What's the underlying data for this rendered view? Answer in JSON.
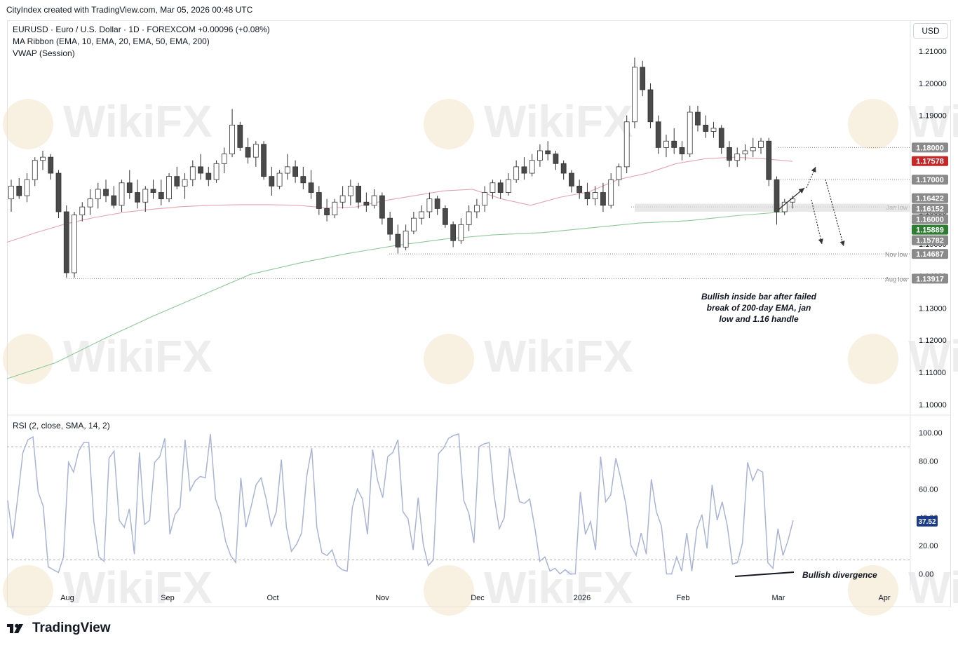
{
  "header": {
    "credit": "CityIndex created with TradingView.com, Mar 05, 2026 00:48 UTC",
    "symbol_line": "EURUSD · Euro / U.S. Dollar · 1D · FOREXCOM",
    "change": "+0.00096 (+0.08%)",
    "indicator1": "MA Ribbon (EMA, 10, EMA, 20, EMA, 50, EMA, 200)",
    "indicator2": "VWAP (Session)",
    "currency_button": "USD"
  },
  "watermark": "WikiFX",
  "footer": {
    "brand": "TradingView"
  },
  "colors": {
    "up_candle": "#ffffff",
    "down_candle": "#4a4a4a",
    "ema50": "#e6a4b0",
    "ema200": "#8fc79a",
    "rsi": "#aab4d8",
    "label_grey": "#8a8a8a",
    "label_red": "#c62828",
    "label_green": "#2e7d32",
    "label_blue": "#1a3a8a"
  },
  "chart_data": [
    {
      "type": "candlestick",
      "title": "EURUSD · Euro / U.S. Dollar · 1D · FOREXCOM",
      "ylim": [
        1.098,
        1.213
      ],
      "y_ticks": [
        "1.21000",
        "1.20000",
        "1.19000",
        "1.18000",
        "1.17000",
        "1.16000",
        "1.15000",
        "1.14000",
        "1.13000",
        "1.12000",
        "1.11000",
        "1.10000"
      ],
      "x_ticks": [
        "Aug",
        "Sep",
        "Oct",
        "Nov",
        "Dec",
        "2026",
        "Feb",
        "Mar",
        "Apr"
      ],
      "price_labels": [
        {
          "value": 1.18,
          "text": "1.18000",
          "style": "grey"
        },
        {
          "value": 1.17578,
          "text": "1.17578",
          "style": "red"
        },
        {
          "value": 1.17,
          "text": "1.17000",
          "style": "grey"
        },
        {
          "value": 1.16422,
          "text": "1.16422",
          "style": "grey"
        },
        {
          "value": 1.16152,
          "text": "1.16152",
          "style": "grey"
        },
        {
          "value": 1.16,
          "text": "1.16000",
          "style": "grey"
        },
        {
          "value": 1.15889,
          "text": "1.15889",
          "style": "green"
        },
        {
          "value": 1.15782,
          "text": "1.15782",
          "style": "grey"
        },
        {
          "value": 1.14687,
          "text": "1.14687",
          "style": "grey"
        },
        {
          "value": 1.13917,
          "text": "1.13917",
          "style": "grey"
        }
      ],
      "level_lines": [
        {
          "value": 1.18,
          "label": ""
        },
        {
          "value": 1.17,
          "label": ""
        },
        {
          "value": 1.1615,
          "label": "Jan low"
        },
        {
          "value": 1.14687,
          "label": "Nov low"
        },
        {
          "value": 1.13917,
          "label": "Aug low"
        }
      ],
      "zone": [
        1.16,
        1.1625
      ],
      "annotation": [
        "Bullish inside bar after failed",
        "break of 200-day EMA, jan",
        "low and 1.16 handle"
      ],
      "series": [
        {
          "name": "EMA 50",
          "values": [
            1.1505,
            1.1535,
            1.1562,
            1.1582,
            1.1598,
            1.1608,
            1.1616,
            1.162,
            1.1622,
            1.1622,
            1.162,
            1.1612,
            1.1615,
            1.1635,
            1.165,
            1.1665,
            1.167,
            1.164,
            1.162,
            1.1645,
            1.1662,
            1.17,
            1.172,
            1.175,
            1.1765,
            1.177,
            1.1765,
            1.1757
          ]
        },
        {
          "name": "EMA 200",
          "values": [
            1.108,
            1.113,
            1.1205,
            1.1275,
            1.134,
            1.1405,
            1.144,
            1.147,
            1.1495,
            1.1515,
            1.1528,
            1.1535,
            1.155,
            1.1565,
            1.1572,
            1.1588,
            1.16
          ]
        }
      ],
      "candles_ohlc": [
        [
          1.164,
          1.17,
          1.16,
          1.168
        ],
        [
          1.168,
          1.1705,
          1.164,
          1.165
        ],
        [
          1.165,
          1.172,
          1.163,
          1.17
        ],
        [
          1.17,
          1.177,
          1.168,
          1.176
        ],
        [
          1.176,
          1.179,
          1.173,
          1.177
        ],
        [
          1.177,
          1.178,
          1.17,
          1.172
        ],
        [
          1.172,
          1.173,
          1.158,
          1.16
        ],
        [
          1.16,
          1.162,
          1.1395,
          1.141
        ],
        [
          1.141,
          1.16,
          1.1395,
          1.159
        ],
        [
          1.159,
          1.163,
          1.157,
          1.1615
        ],
        [
          1.1615,
          1.167,
          1.159,
          1.164
        ],
        [
          1.164,
          1.169,
          1.161,
          1.167
        ],
        [
          1.167,
          1.17,
          1.163,
          1.165
        ],
        [
          1.165,
          1.168,
          1.161,
          1.162
        ],
        [
          1.162,
          1.17,
          1.16,
          1.169
        ],
        [
          1.169,
          1.173,
          1.164,
          1.166
        ],
        [
          1.166,
          1.17,
          1.161,
          1.163
        ],
        [
          1.163,
          1.168,
          1.16,
          1.167
        ],
        [
          1.167,
          1.17,
          1.164,
          1.166
        ],
        [
          1.166,
          1.17,
          1.162,
          1.164
        ],
        [
          1.164,
          1.172,
          1.163,
          1.171
        ],
        [
          1.171,
          1.174,
          1.167,
          1.168
        ],
        [
          1.168,
          1.172,
          1.164,
          1.17
        ],
        [
          1.17,
          1.176,
          1.168,
          1.174
        ],
        [
          1.174,
          1.178,
          1.17,
          1.172
        ],
        [
          1.172,
          1.174,
          1.168,
          1.17
        ],
        [
          1.17,
          1.176,
          1.169,
          1.175
        ],
        [
          1.175,
          1.18,
          1.172,
          1.178
        ],
        [
          1.178,
          1.192,
          1.177,
          1.187
        ],
        [
          1.187,
          1.188,
          1.179,
          1.18
        ],
        [
          1.18,
          1.183,
          1.175,
          1.177
        ],
        [
          1.177,
          1.182,
          1.174,
          1.181
        ],
        [
          1.181,
          1.182,
          1.17,
          1.171
        ],
        [
          1.171,
          1.174,
          1.165,
          1.168
        ],
        [
          1.168,
          1.173,
          1.167,
          1.172
        ],
        [
          1.172,
          1.178,
          1.17,
          1.174
        ],
        [
          1.174,
          1.176,
          1.169,
          1.171
        ],
        [
          1.171,
          1.174,
          1.167,
          1.169
        ],
        [
          1.169,
          1.173,
          1.164,
          1.166
        ],
        [
          1.166,
          1.168,
          1.159,
          1.161
        ],
        [
          1.161,
          1.164,
          1.157,
          1.159
        ],
        [
          1.159,
          1.164,
          1.158,
          1.163
        ],
        [
          1.163,
          1.168,
          1.161,
          1.165
        ],
        [
          1.165,
          1.17,
          1.162,
          1.168
        ],
        [
          1.168,
          1.169,
          1.161,
          1.163
        ],
        [
          1.163,
          1.166,
          1.16,
          1.162
        ],
        [
          1.162,
          1.167,
          1.161,
          1.165
        ],
        [
          1.165,
          1.166,
          1.156,
          1.158
        ],
        [
          1.158,
          1.16,
          1.151,
          1.153
        ],
        [
          1.153,
          1.156,
          1.147,
          1.149
        ],
        [
          1.149,
          1.156,
          1.148,
          1.154
        ],
        [
          1.154,
          1.16,
          1.153,
          1.158
        ],
        [
          1.158,
          1.162,
          1.156,
          1.16
        ],
        [
          1.16,
          1.166,
          1.158,
          1.164
        ],
        [
          1.164,
          1.165,
          1.159,
          1.161
        ],
        [
          1.161,
          1.162,
          1.155,
          1.156
        ],
        [
          1.156,
          1.157,
          1.149,
          1.151
        ],
        [
          1.151,
          1.158,
          1.15,
          1.156
        ],
        [
          1.156,
          1.162,
          1.154,
          1.16
        ],
        [
          1.16,
          1.164,
          1.158,
          1.162
        ],
        [
          1.162,
          1.168,
          1.16,
          1.166
        ],
        [
          1.166,
          1.17,
          1.164,
          1.169
        ],
        [
          1.169,
          1.17,
          1.164,
          1.166
        ],
        [
          1.166,
          1.172,
          1.165,
          1.17
        ],
        [
          1.17,
          1.176,
          1.169,
          1.174
        ],
        [
          1.174,
          1.177,
          1.17,
          1.172
        ],
        [
          1.172,
          1.178,
          1.171,
          1.176
        ],
        [
          1.176,
          1.181,
          1.174,
          1.179
        ],
        [
          1.179,
          1.182,
          1.176,
          1.178
        ],
        [
          1.178,
          1.179,
          1.173,
          1.175
        ],
        [
          1.175,
          1.176,
          1.17,
          1.172
        ],
        [
          1.172,
          1.173,
          1.166,
          1.168
        ],
        [
          1.168,
          1.17,
          1.164,
          1.166
        ],
        [
          1.166,
          1.169,
          1.162,
          1.164
        ],
        [
          1.164,
          1.168,
          1.162,
          1.166
        ],
        [
          1.166,
          1.169,
          1.16,
          1.162
        ],
        [
          1.162,
          1.172,
          1.161,
          1.17
        ],
        [
          1.17,
          1.175,
          1.168,
          1.174
        ],
        [
          1.174,
          1.19,
          1.172,
          1.188
        ],
        [
          1.188,
          1.208,
          1.186,
          1.205
        ],
        [
          1.205,
          1.207,
          1.196,
          1.198
        ],
        [
          1.198,
          1.2,
          1.186,
          1.188
        ],
        [
          1.188,
          1.19,
          1.178,
          1.18
        ],
        [
          1.18,
          1.184,
          1.177,
          1.182
        ],
        [
          1.182,
          1.186,
          1.178,
          1.18
        ],
        [
          1.18,
          1.182,
          1.176,
          1.178
        ],
        [
          1.178,
          1.193,
          1.177,
          1.191
        ],
        [
          1.191,
          1.193,
          1.185,
          1.187
        ],
        [
          1.187,
          1.19,
          1.183,
          1.185
        ],
        [
          1.185,
          1.188,
          1.183,
          1.186
        ],
        [
          1.186,
          1.187,
          1.178,
          1.18
        ],
        [
          1.18,
          1.182,
          1.174,
          1.176
        ],
        [
          1.176,
          1.18,
          1.174,
          1.178
        ],
        [
          1.178,
          1.181,
          1.176,
          1.179
        ],
        [
          1.179,
          1.183,
          1.177,
          1.18
        ],
        [
          1.18,
          1.183,
          1.178,
          1.182
        ],
        [
          1.182,
          1.183,
          1.168,
          1.17
        ],
        [
          1.17,
          1.171,
          1.156,
          1.16
        ],
        [
          1.16,
          1.164,
          1.159,
          1.163
        ],
        [
          1.163,
          1.165,
          1.161,
          1.164
        ]
      ]
    },
    {
      "type": "line",
      "title": "RSI (2, close, SMA, 14, 2)",
      "ylim": [
        -8,
        108
      ],
      "y_ticks": [
        "100.00",
        "80.00",
        "60.00",
        "40.00",
        "20.00",
        "0.00"
      ],
      "current_label": {
        "value": 37.52,
        "text": "37.52"
      },
      "levels": [
        90,
        10
      ],
      "annotation": "Bullish divergence",
      "series": [
        {
          "name": "RSI",
          "values": [
            52,
            25,
            55,
            86,
            95,
            97,
            58,
            48,
            5,
            3,
            1,
            12,
            79,
            72,
            87,
            93,
            93,
            37,
            12,
            9,
            82,
            87,
            38,
            33,
            46,
            14,
            86,
            35,
            38,
            79,
            83,
            96,
            28,
            42,
            47,
            95,
            59,
            66,
            69,
            68,
            99,
            53,
            43,
            23,
            13,
            8,
            68,
            33,
            47,
            63,
            68,
            53,
            34,
            44,
            81,
            33,
            16,
            21,
            29,
            69,
            89,
            33,
            15,
            13,
            17,
            6,
            3,
            2,
            47,
            60,
            53,
            28,
            88,
            66,
            54,
            83,
            86,
            95,
            44,
            39,
            17,
            54,
            21,
            6,
            10,
            85,
            89,
            96,
            98,
            99,
            52,
            43,
            22,
            90,
            92,
            93,
            55,
            32,
            40,
            89,
            69,
            51,
            50,
            53,
            33,
            9,
            12,
            2,
            4,
            0,
            3,
            0,
            0,
            58,
            28,
            37,
            17,
            83,
            51,
            56,
            82,
            67,
            49,
            20,
            13,
            29,
            14,
            67,
            44,
            34,
            0,
            0,
            12,
            2,
            29,
            2,
            32,
            42,
            18,
            63,
            38,
            51,
            34,
            7,
            8,
            22,
            79,
            66,
            74,
            72,
            8,
            4,
            32,
            13,
            24,
            38
          ]
        }
      ]
    }
  ]
}
